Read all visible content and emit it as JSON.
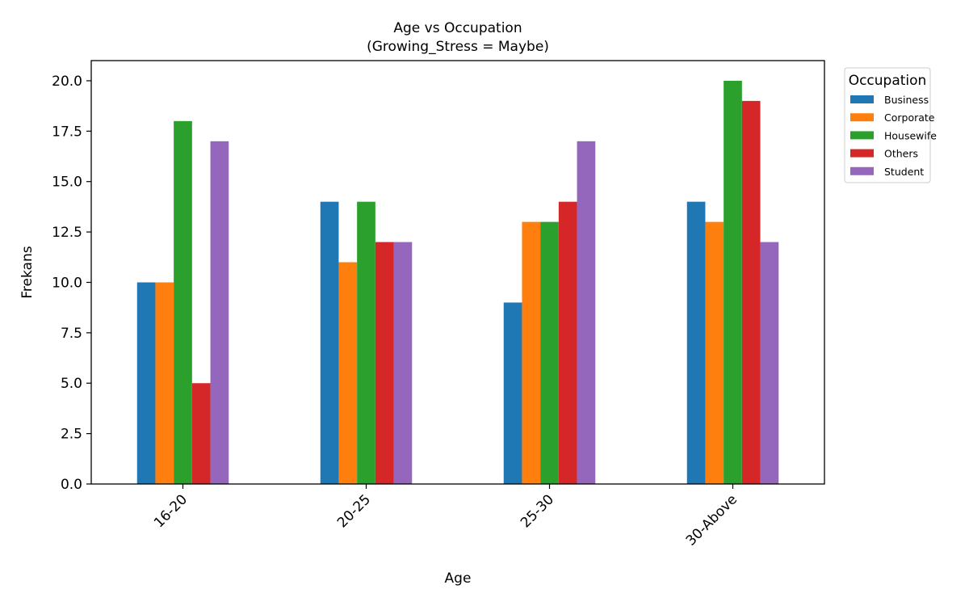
{
  "chart_data": {
    "type": "bar",
    "title": "Age vs Occupation",
    "subtitle": "(Growing_Stress = Maybe)",
    "xlabel": "Age",
    "ylabel": "Frekans",
    "categories": [
      "16-20",
      "20-25",
      "25-30",
      "30-Above"
    ],
    "series": [
      {
        "name": "Business",
        "color": "#1f77b4",
        "values": [
          10,
          14,
          9,
          14
        ]
      },
      {
        "name": "Corporate",
        "color": "#ff7f0e",
        "values": [
          10,
          11,
          13,
          13
        ]
      },
      {
        "name": "Housewife",
        "color": "#2ca02c",
        "values": [
          18,
          14,
          13,
          20
        ]
      },
      {
        "name": "Others",
        "color": "#d62728",
        "values": [
          5,
          12,
          14,
          19
        ]
      },
      {
        "name": "Student",
        "color": "#9467bd",
        "values": [
          17,
          12,
          17,
          12
        ]
      }
    ],
    "ylim": [
      0,
      21
    ],
    "yticks": [
      "0.0",
      "2.5",
      "5.0",
      "7.5",
      "10.0",
      "12.5",
      "15.0",
      "17.5",
      "20.0"
    ],
    "grid": false,
    "legend": {
      "title": "Occupation",
      "placement": "outside-top-right"
    }
  }
}
